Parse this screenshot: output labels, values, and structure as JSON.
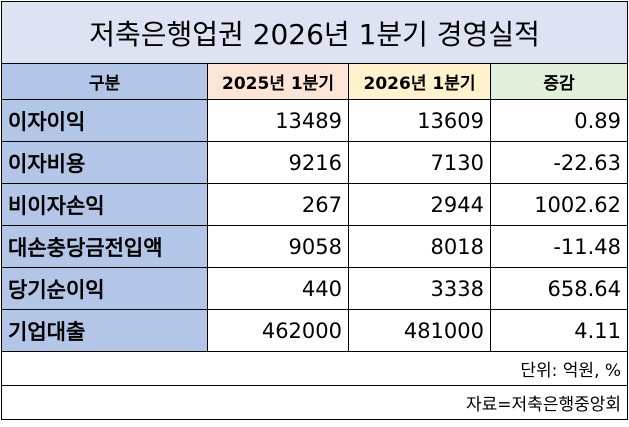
{
  "title": "저축은행업권 2026년 1분기 경영실적",
  "table": {
    "header": [
      "구분",
      "2025년 1분기",
      "2026년 1분기",
      "증감"
    ],
    "rows": [
      [
        "이자이익",
        13489,
        13609,
        0.89
      ],
      [
        "이자비용",
        9216,
        7130,
        -22.63
      ],
      [
        "비이자손익",
        267,
        2944,
        1002.62
      ],
      [
        "대손충당금전입액",
        9058,
        8018,
        -11.48
      ],
      [
        "당기순이익",
        440,
        3338,
        658.64
      ],
      [
        "기업대출",
        462000,
        481000,
        4.11
      ]
    ]
  },
  "unit": "단위: 억원, %",
  "source": "자료=저축은행중앙회"
}
